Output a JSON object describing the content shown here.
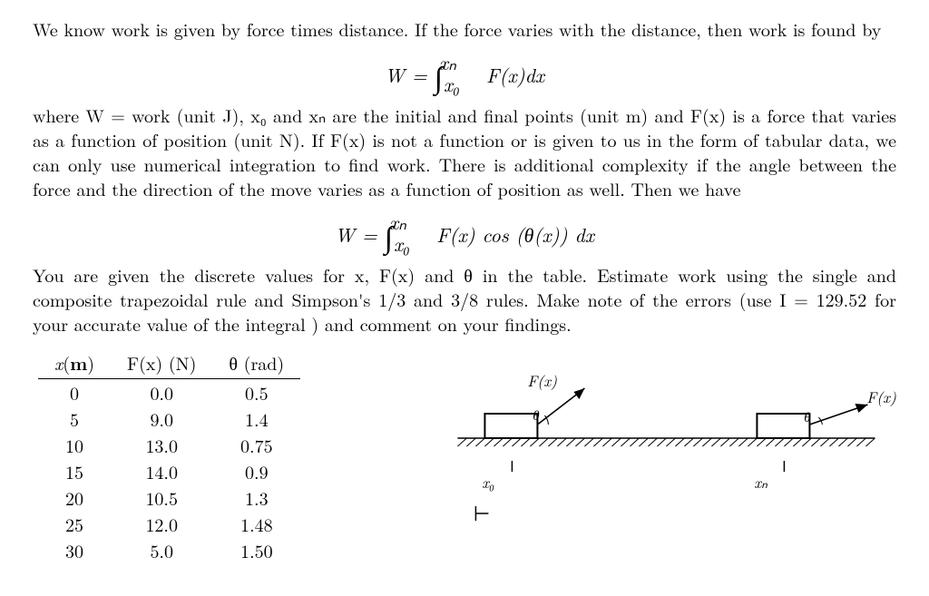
{
  "para1_a": "We know work is given by force times distance. If the force varies with the distance, then work is found by",
  "eq1_lhs": "W",
  "eq1_eq": " = ",
  "eq1_lb": "x₀",
  "eq1_ub": "xₙ",
  "eq1_int": "F(x)dx",
  "para2": "where W = work (unit J), x₀ and xₙ are the initial and final points (unit m) and F(x) is a force that varies as a function of position (unit N). If F(x) is not a function or is given to us in the form of tabular data, we can only use numerical integration to find work. There is additional complexity if the angle between the force and the direction of the move varies as a function of position as well. Then we have",
  "eq2_lhs": "W",
  "eq2_eq": " = ",
  "eq2_lb": "x₀",
  "eq2_ub": "xₙ",
  "eq2_int": "F(x) cos (θ(x)) dx",
  "para3": "You are given the discrete values for x, F(x) and θ in the table. Estimate work using the single and composite trapezoidal rule and Simpson's 1/3 and 3/8 rules. Make note of the errors (use I = 129.52 for your accurate value of the integral ) and comment on your findings.",
  "table": {
    "head": {
      "c1": "x(m)",
      "c2": "F(x) (N)",
      "c3": "θ (rad)"
    },
    "rows": [
      {
        "c1": "0",
        "c2": "0.0",
        "c3": "0.5"
      },
      {
        "c1": "5",
        "c2": "9.0",
        "c3": "1.4"
      },
      {
        "c1": "10",
        "c2": "13.0",
        "c3": "0.75"
      },
      {
        "c1": "15",
        "c2": "14.0",
        "c3": "0.9"
      },
      {
        "c1": "20",
        "c2": "10.5",
        "c3": "1.3"
      },
      {
        "c1": "25",
        "c2": "12.0",
        "c3": "1.48"
      },
      {
        "c1": "30",
        "c2": "5.0",
        "c3": "1.50"
      }
    ]
  },
  "fig": {
    "Fleft": "F(x)",
    "Fright": "F(x)",
    "theta_l": "θ",
    "theta_r": "θ",
    "x0": "x₀",
    "xn": "xₙ",
    "block_stroke": "#000000",
    "ground_fill": "#000000",
    "arrow_stroke": "#000000"
  }
}
